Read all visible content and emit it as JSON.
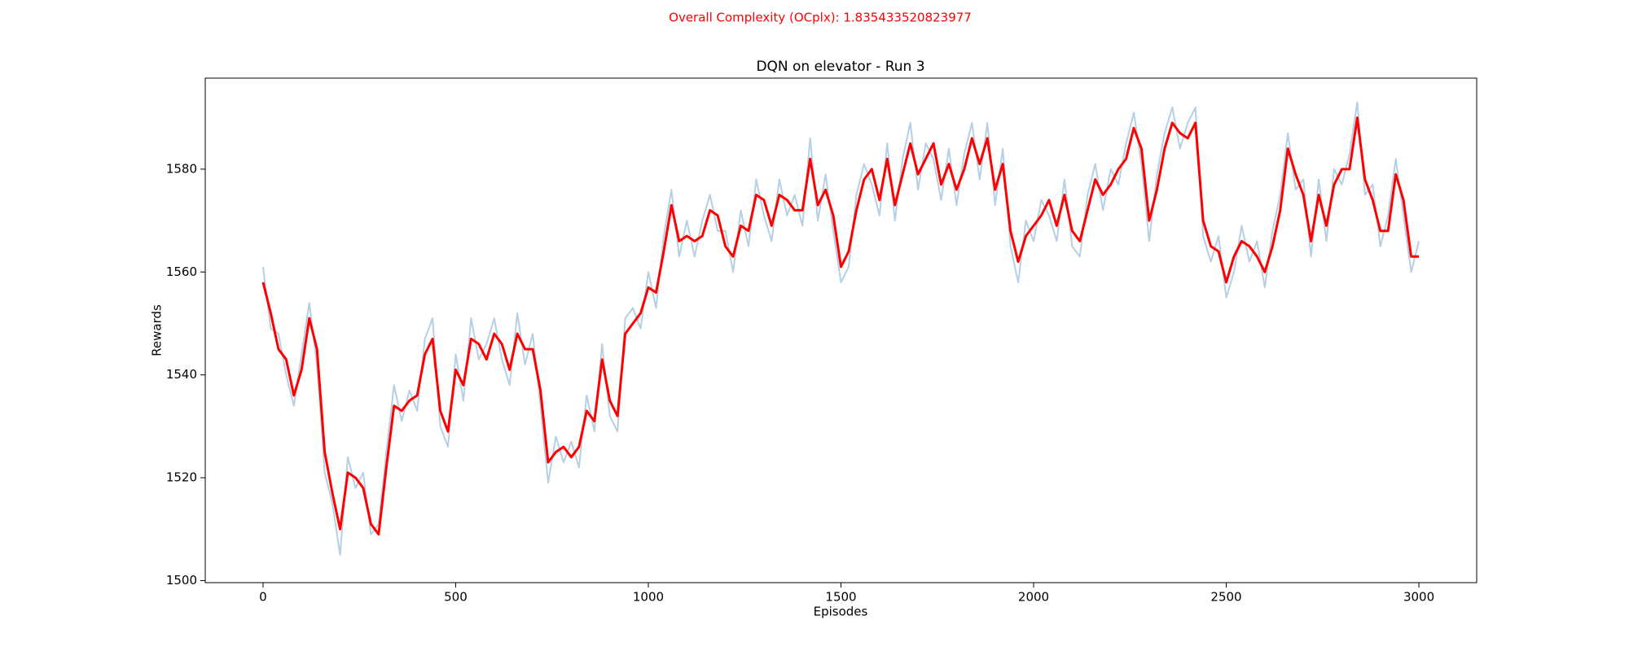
{
  "chart_data": {
    "type": "line",
    "annotation": "Overall Complexity (OCplx): 1.835433520823977",
    "title": "DQN on elevator - Run 3",
    "x_label": "Episodes",
    "y_label": "Rewards",
    "x": [
      0,
      20,
      40,
      60,
      80,
      100,
      120,
      140,
      160,
      180,
      200,
      220,
      240,
      260,
      280,
      300,
      320,
      340,
      360,
      380,
      400,
      420,
      440,
      460,
      480,
      500,
      520,
      540,
      560,
      580,
      600,
      620,
      640,
      660,
      680,
      700,
      720,
      740,
      760,
      780,
      800,
      820,
      840,
      860,
      880,
      900,
      920,
      940,
      960,
      980,
      1000,
      1020,
      1040,
      1060,
      1080,
      1100,
      1120,
      1140,
      1160,
      1180,
      1200,
      1220,
      1240,
      1260,
      1280,
      1300,
      1320,
      1340,
      1360,
      1380,
      1400,
      1420,
      1440,
      1460,
      1480,
      1500,
      1520,
      1540,
      1560,
      1580,
      1600,
      1620,
      1640,
      1660,
      1680,
      1700,
      1720,
      1740,
      1760,
      1780,
      1800,
      1820,
      1840,
      1860,
      1880,
      1900,
      1920,
      1940,
      1960,
      1980,
      2000,
      2020,
      2040,
      2060,
      2080,
      2100,
      2120,
      2140,
      2160,
      2180,
      2200,
      2220,
      2240,
      2260,
      2280,
      2300,
      2320,
      2340,
      2360,
      2380,
      2400,
      2420,
      2440,
      2460,
      2480,
      2500,
      2520,
      2540,
      2560,
      2580,
      2600,
      2620,
      2640,
      2660,
      2680,
      2700,
      2720,
      2740,
      2760,
      2780,
      2800,
      2820,
      2840,
      2860,
      2880,
      2900,
      2920,
      2940,
      2960,
      2980,
      3000
    ],
    "series": [
      {
        "color": "#b5cfe4",
        "width": 2,
        "values": [
          1561,
          1549,
          1548,
          1540,
          1534,
          1544,
          1554,
          1542,
          1521,
          1515,
          1505,
          1524,
          1518,
          1521,
          1509,
          1511,
          1525,
          1538,
          1531,
          1537,
          1533,
          1547,
          1551,
          1530,
          1526,
          1544,
          1535,
          1551,
          1543,
          1546,
          1551,
          1543,
          1538,
          1552,
          1542,
          1548,
          1534,
          1519,
          1528,
          1523,
          1527,
          1522,
          1536,
          1529,
          1546,
          1532,
          1529,
          1551,
          1553,
          1549,
          1560,
          1553,
          1567,
          1576,
          1563,
          1570,
          1563,
          1570,
          1575,
          1568,
          1568,
          1560,
          1572,
          1565,
          1578,
          1571,
          1566,
          1578,
          1571,
          1575,
          1569,
          1586,
          1570,
          1579,
          1568,
          1558,
          1561,
          1575,
          1581,
          1577,
          1571,
          1585,
          1570,
          1582,
          1589,
          1576,
          1585,
          1582,
          1574,
          1584,
          1573,
          1583,
          1589,
          1578,
          1589,
          1573,
          1584,
          1565,
          1558,
          1570,
          1566,
          1574,
          1571,
          1566,
          1578,
          1565,
          1563,
          1575,
          1581,
          1572,
          1580,
          1577,
          1585,
          1591,
          1581,
          1566,
          1579,
          1587,
          1592,
          1584,
          1589,
          1592,
          1567,
          1562,
          1567,
          1555,
          1560,
          1569,
          1562,
          1566,
          1557,
          1568,
          1575,
          1587,
          1576,
          1578,
          1563,
          1578,
          1566,
          1580,
          1577,
          1583,
          1593,
          1575,
          1577,
          1565,
          1571,
          1582,
          1571,
          1560,
          1566
        ]
      },
      {
        "color": "#ff0000",
        "width": 3,
        "values": [
          1558,
          1552,
          1545,
          1543,
          1536,
          1541,
          1551,
          1545,
          1525,
          1517,
          1510,
          1521,
          1520,
          1518,
          1511,
          1509,
          1522,
          1534,
          1533,
          1535,
          1536,
          1544,
          1547,
          1533,
          1529,
          1541,
          1538,
          1547,
          1546,
          1543,
          1548,
          1546,
          1541,
          1548,
          1545,
          1545,
          1537,
          1523,
          1525,
          1526,
          1524,
          1526,
          1533,
          1531,
          1543,
          1535,
          1532,
          1548,
          1550,
          1552,
          1557,
          1556,
          1564,
          1573,
          1566,
          1567,
          1566,
          1567,
          1572,
          1571,
          1565,
          1563,
          1569,
          1568,
          1575,
          1574,
          1569,
          1575,
          1574,
          1572,
          1572,
          1582,
          1573,
          1576,
          1571,
          1561,
          1564,
          1572,
          1578,
          1580,
          1574,
          1582,
          1573,
          1579,
          1585,
          1579,
          1582,
          1585,
          1577,
          1581,
          1576,
          1580,
          1586,
          1581,
          1586,
          1576,
          1581,
          1568,
          1562,
          1567,
          1569,
          1571,
          1574,
          1569,
          1575,
          1568,
          1566,
          1572,
          1578,
          1575,
          1577,
          1580,
          1582,
          1588,
          1584,
          1570,
          1576,
          1584,
          1589,
          1587,
          1586,
          1589,
          1570,
          1565,
          1564,
          1558,
          1563,
          1566,
          1565,
          1563,
          1560,
          1565,
          1572,
          1584,
          1579,
          1575,
          1566,
          1575,
          1569,
          1577,
          1580,
          1580,
          1590,
          1578,
          1574,
          1568,
          1568,
          1579,
          1574,
          1563,
          1563
        ]
      }
    ],
    "xlim": [
      -150,
      3150
    ],
    "ylim": [
      1499.6,
      1597.7
    ],
    "xticks": [
      0,
      500,
      1000,
      1500,
      2000,
      2500,
      3000
    ],
    "yticks": [
      1500,
      1520,
      1540,
      1560,
      1580
    ],
    "grid": false
  }
}
